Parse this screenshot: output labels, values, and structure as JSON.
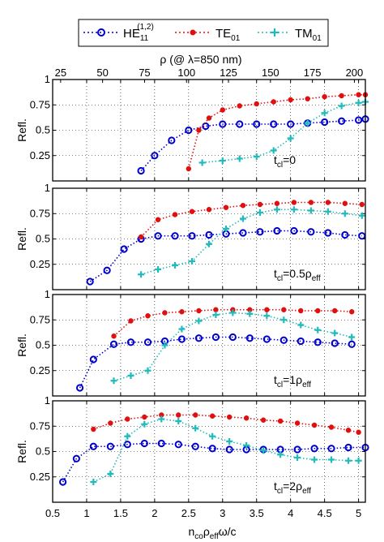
{
  "legend": {
    "entries": [
      {
        "base": "HE",
        "sub": "11",
        "sup": "(1,2)",
        "color": "#0000cc",
        "marker": "circle"
      },
      {
        "base": "TE",
        "sub": "01",
        "sup": "",
        "color": "#e01010",
        "marker": "dot"
      },
      {
        "base": "TM",
        "sub": "01",
        "sup": "",
        "color": "#22bbbb",
        "marker": "plus"
      }
    ]
  },
  "top_axis": {
    "label": "ρ (@ λ=850 nm)",
    "ticks": [
      25,
      50,
      75,
      100,
      125,
      150,
      175,
      200
    ]
  },
  "chart_data": [
    {
      "type": "line",
      "annotation": "t_cl=0",
      "ylabel": "Refl.",
      "xlim": [
        0.5,
        5.1
      ],
      "ylim": [
        0,
        1
      ],
      "series": [
        {
          "name": "HE11(1,2)",
          "color": "#0000cc",
          "marker": "circle",
          "x": [
            1.8,
            2.0,
            2.25,
            2.5,
            2.75,
            3.0,
            3.25,
            3.5,
            3.75,
            4.0,
            4.25,
            4.5,
            4.75,
            5.0,
            5.1
          ],
          "y": [
            0.1,
            0.25,
            0.4,
            0.5,
            0.54,
            0.56,
            0.56,
            0.56,
            0.56,
            0.56,
            0.57,
            0.58,
            0.59,
            0.6,
            0.61
          ]
        },
        {
          "name": "TE01",
          "color": "#e01010",
          "marker": "dot",
          "x": [
            2.5,
            2.65,
            2.8,
            3.0,
            3.25,
            3.5,
            3.75,
            4.0,
            4.25,
            4.5,
            4.75,
            5.0,
            5.1
          ],
          "y": [
            0.12,
            0.5,
            0.62,
            0.7,
            0.74,
            0.76,
            0.78,
            0.8,
            0.81,
            0.83,
            0.84,
            0.85,
            0.85
          ]
        },
        {
          "name": "TM01",
          "color": "#22bbbb",
          "marker": "plus",
          "x": [
            2.7,
            3.0,
            3.25,
            3.5,
            3.75,
            4.0,
            4.25,
            4.5,
            4.75,
            5.0,
            5.1
          ],
          "y": [
            0.18,
            0.2,
            0.22,
            0.24,
            0.3,
            0.42,
            0.57,
            0.67,
            0.74,
            0.77,
            0.78
          ]
        }
      ]
    },
    {
      "type": "line",
      "annotation": "t_cl=0.5ρ_eff",
      "ylabel": "Refl.",
      "xlim": [
        0.5,
        5.1
      ],
      "ylim": [
        0,
        1
      ],
      "series": [
        {
          "name": "HE11(1,2)",
          "color": "#0000cc",
          "marker": "circle",
          "x": [
            1.05,
            1.3,
            1.55,
            1.8,
            2.05,
            2.3,
            2.55,
            2.8,
            3.05,
            3.3,
            3.55,
            3.8,
            4.05,
            4.3,
            4.55,
            4.8,
            5.05
          ],
          "y": [
            0.08,
            0.19,
            0.4,
            0.5,
            0.53,
            0.53,
            0.53,
            0.54,
            0.55,
            0.56,
            0.57,
            0.58,
            0.58,
            0.57,
            0.56,
            0.54,
            0.53
          ]
        },
        {
          "name": "TE01",
          "color": "#e01010",
          "marker": "dot",
          "x": [
            1.8,
            2.05,
            2.3,
            2.55,
            2.8,
            3.05,
            3.3,
            3.55,
            3.8,
            4.05,
            4.3,
            4.55,
            4.8,
            5.05
          ],
          "y": [
            0.52,
            0.69,
            0.74,
            0.77,
            0.79,
            0.81,
            0.83,
            0.84,
            0.85,
            0.86,
            0.86,
            0.86,
            0.85,
            0.84
          ]
        },
        {
          "name": "TM01",
          "color": "#22bbbb",
          "marker": "plus",
          "x": [
            1.8,
            2.05,
            2.3,
            2.55,
            2.8,
            3.05,
            3.3,
            3.55,
            3.8,
            4.05,
            4.3,
            4.55,
            4.8,
            5.05
          ],
          "y": [
            0.15,
            0.2,
            0.24,
            0.28,
            0.45,
            0.6,
            0.7,
            0.76,
            0.79,
            0.79,
            0.78,
            0.77,
            0.75,
            0.73
          ]
        }
      ]
    },
    {
      "type": "line",
      "annotation": "t_cl=1ρ_eff",
      "ylabel": "Refl.",
      "xlim": [
        0.5,
        5.1
      ],
      "ylim": [
        0,
        1
      ],
      "series": [
        {
          "name": "HE11(1,2)",
          "color": "#0000cc",
          "marker": "circle",
          "x": [
            0.9,
            1.1,
            1.4,
            1.65,
            1.9,
            2.15,
            2.4,
            2.65,
            2.9,
            3.15,
            3.4,
            3.65,
            3.9,
            4.15,
            4.4,
            4.65,
            4.9
          ],
          "y": [
            0.08,
            0.36,
            0.51,
            0.53,
            0.53,
            0.54,
            0.56,
            0.57,
            0.58,
            0.58,
            0.57,
            0.56,
            0.55,
            0.54,
            0.53,
            0.52,
            0.51
          ]
        },
        {
          "name": "TE01",
          "color": "#e01010",
          "marker": "dot",
          "x": [
            1.4,
            1.65,
            1.9,
            2.15,
            2.4,
            2.65,
            2.9,
            3.15,
            3.4,
            3.65,
            3.9,
            4.15,
            4.4,
            4.65,
            4.9
          ],
          "y": [
            0.59,
            0.74,
            0.79,
            0.82,
            0.83,
            0.84,
            0.85,
            0.85,
            0.85,
            0.85,
            0.85,
            0.84,
            0.84,
            0.84,
            0.83
          ]
        },
        {
          "name": "TM01",
          "color": "#22bbbb",
          "marker": "plus",
          "x": [
            1.4,
            1.65,
            1.9,
            2.15,
            2.4,
            2.65,
            2.9,
            3.15,
            3.4,
            3.65,
            3.9,
            4.15,
            4.4,
            4.65,
            4.9
          ],
          "y": [
            0.15,
            0.2,
            0.25,
            0.5,
            0.66,
            0.74,
            0.8,
            0.82,
            0.81,
            0.79,
            0.75,
            0.7,
            0.65,
            0.62,
            0.58
          ]
        }
      ]
    },
    {
      "type": "line",
      "annotation": "t_cl=2ρ_eff",
      "ylabel": "Refl.",
      "xlabel": "n_co ρ_eff ω/c",
      "xlim": [
        0.5,
        5.1
      ],
      "ylim": [
        0,
        1
      ],
      "xticks": [
        0.5,
        1,
        1.5,
        2,
        2.5,
        3,
        3.5,
        4,
        4.5,
        5
      ],
      "series": [
        {
          "name": "HE11(1,2)",
          "color": "#0000cc",
          "marker": "circle",
          "x": [
            0.65,
            0.85,
            1.1,
            1.35,
            1.6,
            1.85,
            2.1,
            2.35,
            2.6,
            2.85,
            3.1,
            3.35,
            3.6,
            3.85,
            4.1,
            4.35,
            4.6,
            4.85,
            5.1
          ],
          "y": [
            0.2,
            0.43,
            0.55,
            0.55,
            0.57,
            0.58,
            0.58,
            0.57,
            0.55,
            0.53,
            0.52,
            0.52,
            0.52,
            0.52,
            0.52,
            0.53,
            0.53,
            0.54,
            0.54
          ]
        },
        {
          "name": "TE01",
          "color": "#e01010",
          "marker": "dot",
          "x": [
            1.1,
            1.35,
            1.6,
            1.85,
            2.1,
            2.35,
            2.6,
            2.85,
            3.1,
            3.35,
            3.6,
            3.85,
            4.1,
            4.35,
            4.6,
            4.85,
            5.0
          ],
          "y": [
            0.72,
            0.78,
            0.82,
            0.84,
            0.86,
            0.86,
            0.86,
            0.85,
            0.84,
            0.83,
            0.81,
            0.8,
            0.78,
            0.76,
            0.74,
            0.71,
            0.69
          ]
        },
        {
          "name": "TM01",
          "color": "#22bbbb",
          "marker": "plus",
          "x": [
            1.1,
            1.35,
            1.6,
            1.85,
            2.1,
            2.35,
            2.6,
            2.85,
            3.1,
            3.35,
            3.6,
            3.85,
            4.1,
            4.35,
            4.6,
            4.85,
            5.0
          ],
          "y": [
            0.2,
            0.28,
            0.65,
            0.77,
            0.82,
            0.8,
            0.73,
            0.65,
            0.6,
            0.56,
            0.51,
            0.47,
            0.44,
            0.42,
            0.42,
            0.41,
            0.41
          ]
        }
      ]
    }
  ]
}
